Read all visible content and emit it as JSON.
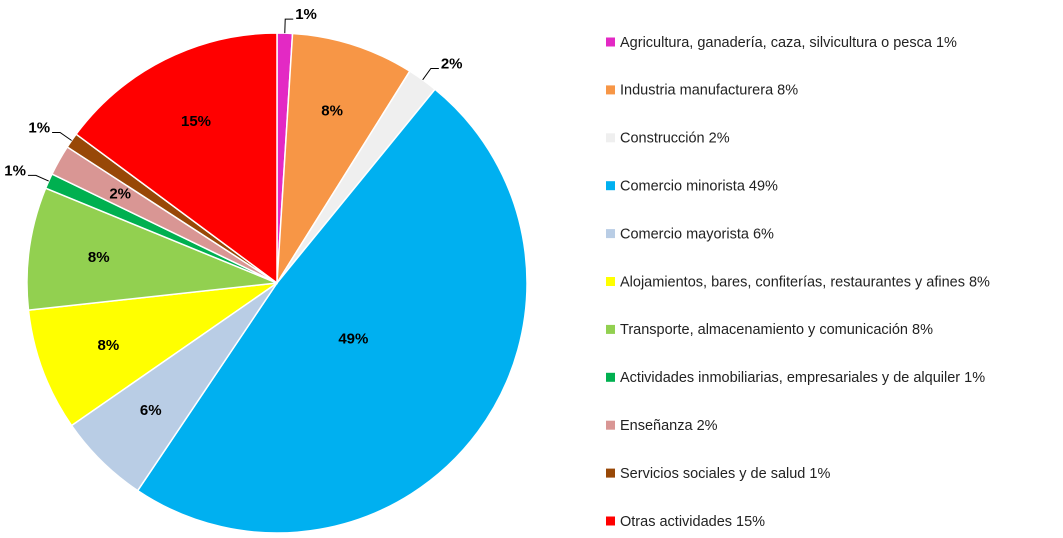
{
  "chart_data": {
    "type": "pie",
    "categories": [
      "Agricultura, ganadería, caza, silvicultura o pesca 1%",
      "Industria manufacturera 8%",
      "Construcción 2%",
      "Comercio minorista 49%",
      "Comercio mayorista 6%",
      "Alojamientos, bares, confiterías, restaurantes y afines 8%",
      "Transporte, almacenamiento y comunicación 8%",
      "Actividades inmobiliarias, empresariales y de alquiler 1%",
      "Enseñanza 2%",
      "Servicios sociales y de salud 1%",
      "Otras actividades 15%"
    ],
    "values": [
      1,
      8,
      2,
      49,
      6,
      8,
      8,
      1,
      2,
      1,
      15
    ],
    "value_labels": [
      "1%",
      "8%",
      "2%",
      "49%",
      "6%",
      "8%",
      "8%",
      "1%",
      "2%",
      "1%",
      "15%"
    ],
    "colors": [
      "#e329c4",
      "#f79646",
      "#efefef",
      "#00b0f0",
      "#b9cde5",
      "#ffff00",
      "#92d050",
      "#00b050",
      "#d99694",
      "#984807",
      "#ff0000"
    ],
    "legend": "right"
  }
}
